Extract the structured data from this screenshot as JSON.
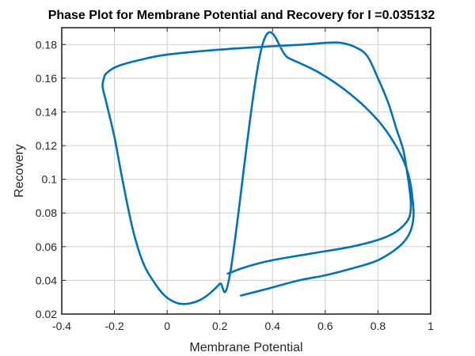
{
  "chart_data": {
    "type": "line",
    "title": "Phase Plot for Membrane Potential and Recovery for I =0.035132",
    "xlabel": "Membrane Potential",
    "ylabel": "Recovery",
    "xlim": [
      -0.4,
      1.0
    ],
    "ylim": [
      0.02,
      0.19
    ],
    "xticks": [
      -0.4,
      -0.2,
      0,
      0.2,
      0.4,
      0.6,
      0.8,
      1
    ],
    "yticks": [
      0.02,
      0.04,
      0.06,
      0.08,
      0.1,
      0.12,
      0.14,
      0.16,
      0.18
    ],
    "xtick_labels": [
      "-0.4",
      "-0.2",
      "0",
      "0.2",
      "0.4",
      "0.6",
      "0.8",
      "1"
    ],
    "ytick_labels": [
      "0.02",
      "0.04",
      "0.06",
      "0.08",
      "0.1",
      "0.12",
      "0.14",
      "0.16",
      "0.18"
    ],
    "grid": true,
    "legend": false,
    "line_color": "#0072BD",
    "series": [
      {
        "x": [
          0.28,
          0.38,
          0.5,
          0.6,
          0.7,
          0.8,
          0.88,
          0.92,
          0.935,
          0.93,
          0.92,
          0.9,
          0.86,
          0.8,
          0.7,
          0.58,
          0.46,
          0.36,
          0.24,
          0.2,
          0.16,
          0.12,
          0.07,
          0.03,
          -0.01,
          -0.05,
          -0.09,
          -0.13,
          -0.17,
          -0.2,
          -0.23,
          -0.245,
          -0.24,
          -0.23,
          -0.19,
          -0.1,
          0.0,
          0.2,
          0.4,
          0.52,
          0.6,
          0.66,
          0.72,
          0.76,
          0.8,
          0.84,
          0.87,
          0.895,
          0.91,
          0.92,
          0.925,
          0.92,
          0.9,
          0.86,
          0.8,
          0.7,
          0.55,
          0.4,
          0.3,
          0.23
        ],
        "y": [
          0.031,
          0.035,
          0.04,
          0.043,
          0.047,
          0.052,
          0.06,
          0.068,
          0.078,
          0.09,
          0.1,
          0.11,
          0.122,
          0.135,
          0.15,
          0.163,
          0.172,
          0.179,
          0.045,
          0.038,
          0.032,
          0.028,
          0.026,
          0.027,
          0.031,
          0.039,
          0.05,
          0.07,
          0.1,
          0.125,
          0.145,
          0.155,
          0.16,
          0.163,
          0.167,
          0.171,
          0.174,
          0.177,
          0.179,
          0.18,
          0.181,
          0.181,
          0.178,
          0.173,
          0.16,
          0.145,
          0.13,
          0.118,
          0.105,
          0.094,
          0.085,
          0.078,
          0.073,
          0.068,
          0.064,
          0.06,
          0.056,
          0.052,
          0.048,
          0.044
        ]
      }
    ]
  }
}
